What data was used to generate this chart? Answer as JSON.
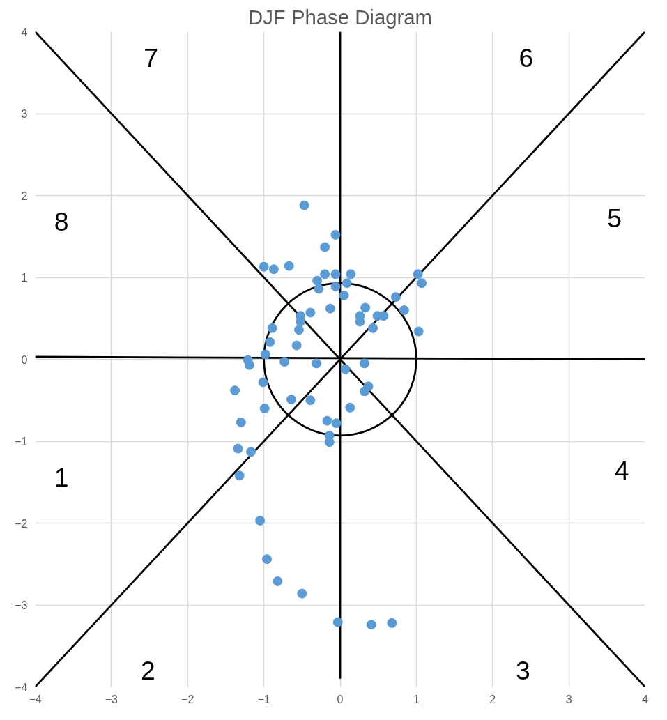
{
  "chart_data": {
    "type": "scatter",
    "title": "DJF Phase Diagram",
    "xlim": [
      -4,
      4
    ],
    "ylim": [
      -4,
      4
    ],
    "xticks": [
      -4,
      -3,
      -2,
      -1,
      0,
      1,
      2,
      3,
      4
    ],
    "yticks": [
      -4,
      -3,
      -2,
      -1,
      0,
      1,
      2,
      3,
      4
    ],
    "grid": true,
    "marker": "circle",
    "series": [
      {
        "color": "#5b9bd5",
        "x": [
          -0.47,
          -0.06,
          -0.2,
          -1.0,
          -0.87,
          -0.67,
          -0.2,
          -0.06,
          0.14,
          -0.3,
          -0.28,
          -0.06,
          0.09,
          0.05,
          1.02,
          1.07,
          0.73,
          0.33,
          -0.13,
          -0.39,
          -0.52,
          -0.52,
          0.26,
          0.26,
          0.49,
          0.57,
          0.43,
          0.84,
          1.03,
          -0.89,
          -0.54,
          -0.92,
          -0.57,
          -0.98,
          -1.21,
          -1.19,
          -0.73,
          -0.31,
          0.07,
          0.32,
          -1.01,
          -1.38,
          0.37,
          0.32,
          -0.64,
          -0.39,
          -0.99,
          0.13,
          -1.3,
          -0.17,
          -0.05,
          -0.14,
          -0.14,
          -1.34,
          -1.17,
          -1.32,
          -1.05,
          -0.96,
          -0.82,
          -0.5,
          -0.03,
          0.41,
          0.68
        ],
        "values": [
          1.88,
          1.52,
          1.37,
          1.13,
          1.1,
          1.14,
          1.04,
          1.04,
          1.04,
          0.96,
          0.86,
          0.89,
          0.93,
          0.78,
          1.04,
          0.93,
          0.76,
          0.63,
          0.62,
          0.57,
          0.53,
          0.46,
          0.53,
          0.46,
          0.53,
          0.53,
          0.38,
          0.6,
          0.34,
          0.38,
          0.36,
          0.21,
          0.17,
          0.06,
          -0.01,
          -0.07,
          -0.03,
          -0.05,
          -0.12,
          -0.05,
          -0.28,
          -0.38,
          -0.33,
          -0.39,
          -0.49,
          -0.5,
          -0.6,
          -0.59,
          -0.77,
          -0.75,
          -0.78,
          -0.93,
          -1.01,
          -1.09,
          -1.13,
          -1.42,
          -1.97,
          -2.44,
          -2.71,
          -2.86,
          -3.21,
          -3.24,
          -3.22
        ]
      },
      {
        "type": "line",
        "marker": "none",
        "color": "#000000",
        "x": [
          -4,
          4
        ],
        "values": [
          4,
          -4
        ]
      },
      {
        "type": "line",
        "marker": "none",
        "color": "#000000",
        "x": [
          -4,
          4
        ],
        "values": [
          -4,
          4
        ]
      },
      {
        "type": "line",
        "marker": "none",
        "color": "#000000",
        "x": [
          -4,
          4
        ],
        "values": [
          0.03,
          0
        ]
      },
      {
        "type": "line",
        "marker": "none",
        "color": "#000000",
        "x": [
          0,
          0
        ],
        "values": [
          4,
          -3.9
        ]
      }
    ],
    "annotations": [
      "1",
      "2",
      "3",
      "4",
      "5",
      "6",
      "7",
      "8"
    ]
  }
}
